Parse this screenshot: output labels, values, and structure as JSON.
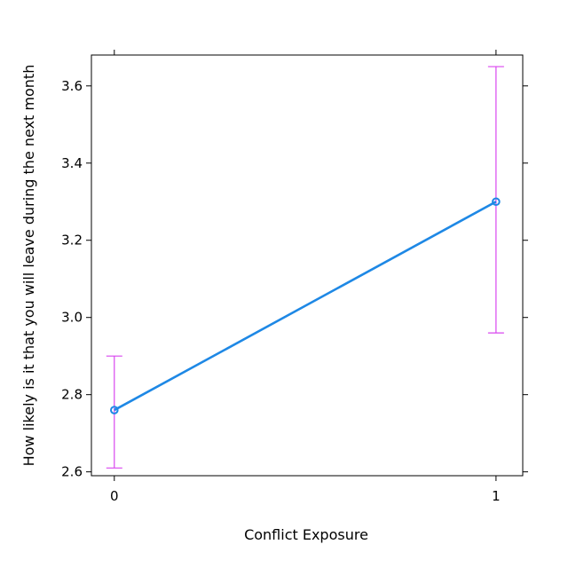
{
  "chart_data": {
    "type": "line",
    "title": "",
    "xlabel": "Conflict Exposure",
    "ylabel": "How likely is it that you will leave during the next month",
    "x": [
      0,
      1
    ],
    "x_tick_labels": [
      "0",
      "1"
    ],
    "xlim": [
      -0.06,
      1.07
    ],
    "ylim": [
      2.59,
      3.68
    ],
    "y_ticks": [
      2.6,
      2.8,
      3.0,
      3.2,
      3.4,
      3.6
    ],
    "y_tick_labels": [
      "2.6",
      "2.8",
      "3.0",
      "3.2",
      "3.4",
      "3.6"
    ],
    "grid": false,
    "legend": "none",
    "series": [
      {
        "values": [
          2.76,
          3.3
        ],
        "lower": [
          2.61,
          2.96
        ],
        "upper": [
          2.9,
          3.65
        ],
        "color": "#1e88e5",
        "errorbar_color": "#d946ef"
      }
    ]
  }
}
